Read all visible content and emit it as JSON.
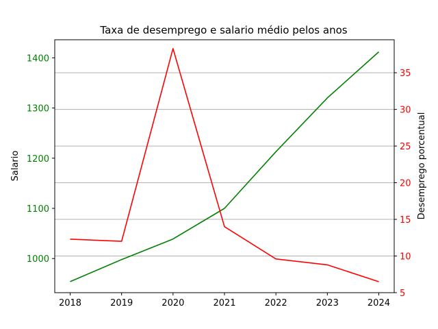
{
  "chart_data": {
    "type": "line",
    "title": "Taxa de desemprego e salario médio pelos anos",
    "xlabel": "",
    "x": [
      2018,
      2019,
      2020,
      2021,
      2022,
      2023,
      2024
    ],
    "x_ticks": [
      "2018",
      "2019",
      "2020",
      "2021",
      "2022",
      "2023",
      "2024"
    ],
    "xlim": [
      2017.7,
      2024.3
    ],
    "y_left": {
      "label": "Salario",
      "color": "#008000",
      "lim": [
        932,
        1436
      ],
      "ticks": [
        1000,
        1100,
        1200,
        1300,
        1400
      ],
      "tick_labels": [
        "1000",
        "1100",
        "1200",
        "1300",
        "1400"
      ]
    },
    "y_right": {
      "label": "Desemprego porcentual",
      "color": "#ff0000",
      "lim": [
        5,
        39.5
      ],
      "ticks": [
        5,
        10,
        15,
        20,
        25,
        30,
        35
      ],
      "tick_labels": [
        "5",
        "10",
        "15",
        "20",
        "25",
        "30",
        "35"
      ]
    },
    "grid": "horizontal gridlines at right-axis ticks",
    "series": [
      {
        "axis": "left",
        "color": "#008000",
        "values": [
          954,
          998,
          1039,
          1100,
          1213,
          1320,
          1412
        ]
      },
      {
        "axis": "right",
        "color": "#ff0000",
        "values": [
          12.3,
          12.0,
          38.3,
          14.0,
          9.6,
          8.8,
          6.5
        ]
      }
    ]
  }
}
